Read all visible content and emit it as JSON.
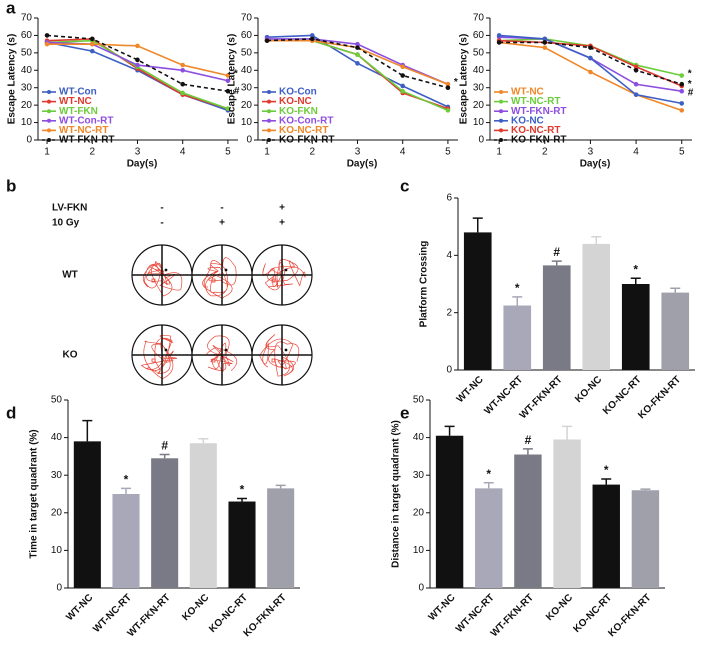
{
  "chart_data": [
    {
      "type": "line",
      "panel": "a",
      "x": [
        1,
        2,
        3,
        4,
        5
      ],
      "xlim": [
        0.8,
        5.4
      ],
      "xticks": [
        1,
        2,
        3,
        4,
        5
      ],
      "ylim": [
        0,
        70
      ],
      "yticks": [
        0,
        10,
        20,
        30,
        40,
        50,
        60,
        70
      ],
      "xlabel": "Day(s)",
      "ylabel": "Escape Latency (s)",
      "legend": "lower left",
      "series": [
        {
          "name": "WT-Con",
          "color": "#3d5fc4",
          "linestyle": "solid",
          "values": [
            56,
            51,
            40,
            26,
            17
          ]
        },
        {
          "name": "WT-NC",
          "color": "#e03a2f",
          "linestyle": "solid",
          "values": [
            57,
            58,
            41,
            26,
            18
          ]
        },
        {
          "name": "WT-FKN",
          "color": "#6ccc3b",
          "linestyle": "solid",
          "values": [
            56,
            57,
            42,
            27,
            18
          ]
        },
        {
          "name": "WT-Con-RT",
          "color": "#8e4fe0",
          "linestyle": "solid",
          "values": [
            56,
            55,
            43,
            40,
            34
          ]
        },
        {
          "name": "WT-NC-RT",
          "color": "#f0882a",
          "linestyle": "solid",
          "values": [
            55,
            55,
            54,
            43,
            37
          ]
        },
        {
          "name": "WT-FKN-RT",
          "color": "#111111",
          "linestyle": "dashed",
          "values": [
            60,
            58,
            46,
            32,
            28
          ]
        }
      ],
      "annotations": [
        {
          "text": "*",
          "x": 5,
          "y": 38
        },
        {
          "text": "#",
          "x": 5,
          "y": 28
        }
      ]
    },
    {
      "type": "line",
      "panel": null,
      "x": [
        1,
        2,
        3,
        4,
        5
      ],
      "xlim": [
        0.8,
        5.4
      ],
      "xticks": [
        1,
        2,
        3,
        4,
        5
      ],
      "ylim": [
        0,
        70
      ],
      "yticks": [
        0,
        10,
        20,
        30,
        40,
        50,
        60,
        70
      ],
      "xlabel": "Day(s)",
      "ylabel": "Escape Latency (s)",
      "legend": "lower left",
      "series": [
        {
          "name": "KO-Con",
          "color": "#3d5fc4",
          "linestyle": "solid",
          "values": [
            59,
            60,
            44,
            31,
            19
          ]
        },
        {
          "name": "KO-NC",
          "color": "#e03a2f",
          "linestyle": "solid",
          "values": [
            57,
            57,
            49,
            27,
            18
          ]
        },
        {
          "name": "KO-FKN",
          "color": "#6ccc3b",
          "linestyle": "solid",
          "values": [
            57,
            57,
            49,
            28,
            17
          ]
        },
        {
          "name": "KO-Con-RT",
          "color": "#8e4fe0",
          "linestyle": "solid",
          "values": [
            58,
            58,
            55,
            43,
            32
          ]
        },
        {
          "name": "KO-NC-RT",
          "color": "#f0882a",
          "linestyle": "solid",
          "values": [
            57,
            57,
            53,
            42,
            32
          ]
        },
        {
          "name": "KO-FKN-RT",
          "color": "#111111",
          "linestyle": "dashed",
          "values": [
            57,
            58,
            53,
            37,
            30
          ]
        }
      ],
      "annotations": [
        {
          "text": "*",
          "x": 5,
          "y": 33
        }
      ]
    },
    {
      "type": "line",
      "panel": null,
      "x": [
        1,
        2,
        3,
        4,
        5
      ],
      "xlim": [
        0.8,
        5.4
      ],
      "xticks": [
        1,
        2,
        3,
        4,
        5
      ],
      "ylim": [
        0,
        70
      ],
      "yticks": [
        0,
        10,
        20,
        30,
        40,
        50,
        60,
        70
      ],
      "xlabel": "Day(s)",
      "ylabel": "Escape Latency (s)",
      "legend": "lower left",
      "series": [
        {
          "name": "WT-NC",
          "color": "#f0882a",
          "linestyle": "solid",
          "values": [
            56,
            53,
            39,
            26,
            17
          ]
        },
        {
          "name": "WT-NC-RT",
          "color": "#6ccc3b",
          "linestyle": "solid",
          "values": [
            57,
            58,
            54,
            43,
            37
          ]
        },
        {
          "name": "WT-FKN-RT",
          "color": "#8e4fe0",
          "linestyle": "solid",
          "values": [
            59,
            58,
            47,
            32,
            28
          ]
        },
        {
          "name": "KO-NC",
          "color": "#3d5fc4",
          "linestyle": "solid",
          "values": [
            60,
            58,
            47,
            26,
            21
          ]
        },
        {
          "name": "KO-NC-RT",
          "color": "#e03a2f",
          "linestyle": "solid",
          "values": [
            57,
            56,
            54,
            42,
            31
          ]
        },
        {
          "name": "KO-FKN-RT",
          "color": "#111111",
          "linestyle": "dashed",
          "values": [
            56,
            56,
            53,
            40,
            32
          ]
        }
      ],
      "annotations": [
        {
          "text": "*",
          "x": 5,
          "y": 38
        },
        {
          "text": "*",
          "x": 5,
          "y": 32
        },
        {
          "text": "#",
          "x": 5,
          "y": 27
        }
      ]
    },
    {
      "type": "bar",
      "panel": "c",
      "categories": [
        "WT-NC",
        "WT-NC-RT",
        "WT-FKN-RT",
        "KO-NC",
        "KO-NC-RT",
        "KO-FKN-RT"
      ],
      "values": [
        4.8,
        2.25,
        3.65,
        4.4,
        3.0,
        2.7
      ],
      "errors": [
        0.5,
        0.3,
        0.15,
        0.25,
        0.2,
        0.15
      ],
      "colors": [
        "#111111",
        "#a8a8b8",
        "#7a7a86",
        "#d4d4d4",
        "#111111",
        "#a0a0ab"
      ],
      "significance": [
        null,
        "*",
        "#",
        null,
        "*",
        null
      ],
      "ylim": [
        0,
        6
      ],
      "yticks": [
        0,
        2,
        4,
        6
      ],
      "ylabel": "Platform Crossing"
    },
    {
      "type": "bar",
      "panel": "d",
      "categories": [
        "WT-NC",
        "WT-NC-RT",
        "WT-FKN-RT",
        "KO-NC",
        "KO-NC-RT",
        "KO-FKN-RT"
      ],
      "values": [
        39,
        25,
        34.5,
        38.5,
        23,
        26.5
      ],
      "errors": [
        5.5,
        1.5,
        1,
        1.2,
        0.8,
        0.8
      ],
      "colors": [
        "#111111",
        "#a8a8b8",
        "#7a7a86",
        "#d4d4d4",
        "#111111",
        "#a0a0ab"
      ],
      "significance": [
        null,
        "*",
        "#",
        null,
        "*",
        null
      ],
      "ylim": [
        0,
        50
      ],
      "yticks": [
        0,
        10,
        20,
        30,
        40,
        50
      ],
      "ylabel": "Time in target quadrant (%)"
    },
    {
      "type": "bar",
      "panel": "e",
      "categories": [
        "WT-NC",
        "WT-NC-RT",
        "WT-FKN-RT",
        "KO-NC",
        "KO-NC-RT",
        "KO-FKN-RT"
      ],
      "values": [
        40.5,
        26.5,
        35.5,
        39.5,
        27.5,
        26
      ],
      "errors": [
        2.5,
        1.5,
        1.5,
        3.5,
        1.5,
        0.3
      ],
      "colors": [
        "#111111",
        "#a8a8b8",
        "#7a7a86",
        "#d4d4d4",
        "#111111",
        "#a0a0ab"
      ],
      "significance": [
        null,
        "*",
        "#",
        null,
        "*",
        null
      ],
      "ylim": [
        0,
        50
      ],
      "yticks": [
        0,
        10,
        20,
        30,
        40,
        50
      ],
      "ylabel": "Distance in target quadrant (%)"
    }
  ],
  "swim_paths": {
    "panel": "b",
    "row_labels": [
      "WT",
      "KO"
    ],
    "conditions": [
      {
        "label": "LV-FKN",
        "values": [
          "-",
          "-",
          "+"
        ]
      },
      {
        "label": "10 Gy",
        "values": [
          "-",
          "+",
          "+"
        ]
      }
    ]
  }
}
